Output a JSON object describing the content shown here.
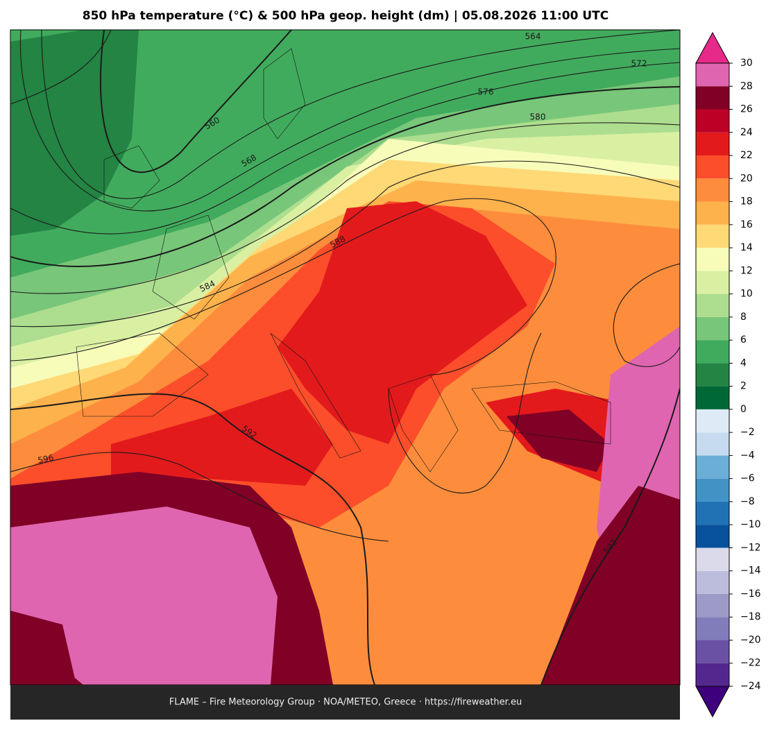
{
  "title": "850 hPa temperature (°C) & 500 hPa geop. height (dm)  |  05.08.2026 11:00 UTC",
  "contour_labels": [
    "564",
    "572",
    "576",
    "580",
    "560",
    "568",
    "588",
    "584",
    "592",
    "596",
    "592"
  ],
  "colorbar": {
    "lim": [
      -24,
      30
    ],
    "ticks": [
      {
        "value": -24,
        "label": "−24"
      },
      {
        "value": -22,
        "label": "−22"
      },
      {
        "value": -20,
        "label": "−20"
      },
      {
        "value": -18,
        "label": "−18"
      },
      {
        "value": -16,
        "label": "−16"
      },
      {
        "value": -14,
        "label": "−14"
      },
      {
        "value": -12,
        "label": "−12"
      },
      {
        "value": -10,
        "label": "−10"
      },
      {
        "value": -8,
        "label": "−8"
      },
      {
        "value": -6,
        "label": "−6"
      },
      {
        "value": -4,
        "label": "−4"
      },
      {
        "value": -2,
        "label": "−2"
      },
      0,
      2,
      4,
      6,
      8,
      10,
      12,
      14,
      16,
      18,
      20,
      22,
      24,
      26,
      28,
      30
    ],
    "colors": [
      "#54278f",
      "#6a51a3",
      "#807dba",
      "#9e9ac8",
      "#bcbddc",
      "#dadaeb",
      "#08519c",
      "#2171b5",
      "#4292c6",
      "#6baed6",
      "#c6dbef",
      "#deebf7",
      "#006837",
      "#238443",
      "#41ab5d",
      "#78c679",
      "#addd8e",
      "#d9f0a3",
      "#f7fcb9",
      "#fed976",
      "#feb24c",
      "#fd8d3c",
      "#fc4e2a",
      "#e31a1c",
      "#bd0026",
      "#800026",
      "#df65b0"
    ],
    "extend_colors": {
      "below": "#3f007d",
      "above": "#e7298a"
    }
  },
  "footer": "FLAME – Fire Meteorology Group · NOA/METEO, Greece · https://fireweather.eu"
}
